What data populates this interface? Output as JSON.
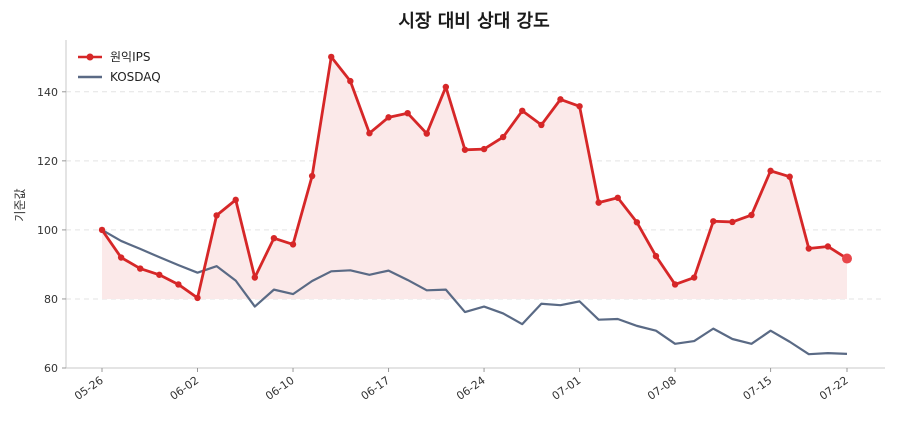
{
  "chart_data": {
    "type": "line",
    "title": "시장 대비 상대 강도",
    "xlabel": "",
    "ylabel": "기준값",
    "ylim": [
      60,
      155
    ],
    "yticks": [
      60,
      80,
      100,
      120,
      140
    ],
    "grid": "horizontal dashed",
    "legend_position": "top-left",
    "x_tick_labels": [
      {
        "i": 0,
        "label": "05-26"
      },
      {
        "i": 5,
        "label": "06-02"
      },
      {
        "i": 10,
        "label": "06-10"
      },
      {
        "i": 15,
        "label": "06-17"
      },
      {
        "i": 20,
        "label": "06-24"
      },
      {
        "i": 25,
        "label": "07-01"
      },
      {
        "i": 30,
        "label": "07-08"
      },
      {
        "i": 35,
        "label": "07-15"
      },
      {
        "i": 39,
        "label": "07-22"
      }
    ],
    "series": [
      {
        "name": "원익IPS",
        "color": "#d62728",
        "fill": "#fbe9e9",
        "values": [
          100,
          92,
          88.8,
          87,
          84.2,
          80.3,
          104.2,
          108.7,
          86.2,
          97.6,
          95.8,
          115.6,
          150.1,
          143.1,
          128,
          132.6,
          133.8,
          127.9,
          141.4,
          123.2,
          123.4,
          126.9,
          134.5,
          130.4,
          137.8,
          135.8,
          107.9,
          109.3,
          102.2,
          92.4,
          84.2,
          86.2,
          102.5,
          102.3,
          104.3,
          117.1,
          115.4,
          94.6,
          95.2,
          91.7
        ]
      },
      {
        "name": "KOSDAQ",
        "color": "#5a6a85",
        "values": [
          100,
          96.8,
          94.5,
          92.1,
          89.8,
          87.6,
          89.5,
          85.3,
          77.8,
          82.7,
          81.4,
          85.2,
          88,
          88.3,
          87,
          88.2,
          85.5,
          82.5,
          82.7,
          76.2,
          77.8,
          75.8,
          72.7,
          78.6,
          78.2,
          79.3,
          74,
          74.2,
          72.2,
          70.8,
          67,
          67.8,
          71.4,
          68.4,
          67,
          70.8,
          67.6,
          64,
          64.3,
          64.1
        ]
      }
    ]
  }
}
